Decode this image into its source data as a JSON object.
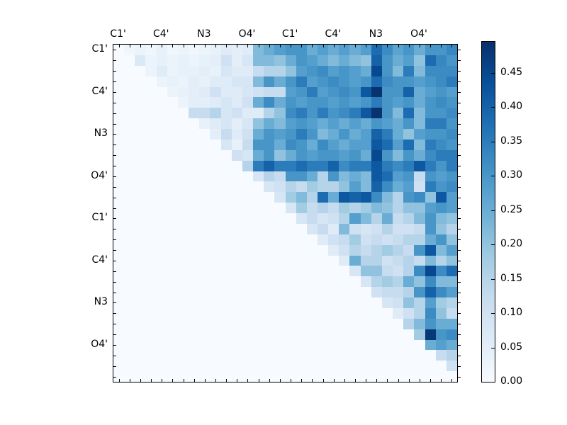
{
  "figure": {
    "background": "#ffffff"
  },
  "chart_data": {
    "type": "heatmap",
    "title": "",
    "xlabel": "",
    "ylabel": "",
    "n_rows": 32,
    "n_cols": 32,
    "x_tick_labels": [
      "C1'",
      "C4'",
      "N3",
      "O4'",
      "C1'",
      "C4'",
      "N3",
      "O4'"
    ],
    "y_tick_labels": [
      "C1'",
      "C4'",
      "N3",
      "O4'",
      "C1'",
      "C4'",
      "N3",
      "O4'"
    ],
    "x_tick_positions": [
      0,
      4,
      8,
      12,
      16,
      20,
      24,
      28
    ],
    "y_tick_positions": [
      0,
      4,
      8,
      12,
      16,
      20,
      24,
      28
    ],
    "minor_ticks_every_cell": true,
    "vmin": 0.0,
    "vmax": 0.495,
    "colormap": {
      "name": "Blues",
      "anchors": [
        "#f7fbff",
        "#deebf7",
        "#c6dbef",
        "#9ecae1",
        "#6baed6",
        "#4292c6",
        "#2171b5",
        "#08519c",
        "#08306b"
      ]
    },
    "colorbar": {
      "tick_labels": [
        "0.00",
        "0.05",
        "0.10",
        "0.15",
        "0.20",
        "0.25",
        "0.30",
        "0.35",
        "0.40",
        "0.45"
      ],
      "tick_values": [
        0.0,
        0.05,
        0.1,
        0.15,
        0.2,
        0.25,
        0.3,
        0.35,
        0.4,
        0.45
      ],
      "position": "right"
    },
    "matrix": [
      [
        0,
        0.02,
        0.03,
        0.02,
        0.04,
        0.02,
        0.03,
        0.02,
        0.03,
        0.04,
        0.06,
        0.05,
        0.06,
        0.22,
        0.25,
        0.28,
        0.3,
        0.3,
        0.25,
        0.28,
        0.25,
        0.28,
        0.25,
        0.28,
        0.38,
        0.32,
        0.27,
        0.3,
        0.25,
        0.3,
        0.3,
        0.33
      ],
      [
        0,
        0,
        0.07,
        0.03,
        0.04,
        0.03,
        0.04,
        0.03,
        0.04,
        0.05,
        0.1,
        0.05,
        0.08,
        0.22,
        0.22,
        0.2,
        0.25,
        0.3,
        0.28,
        0.25,
        0.22,
        0.25,
        0.22,
        0.2,
        0.4,
        0.3,
        0.25,
        0.28,
        0.2,
        0.38,
        0.33,
        0.3
      ],
      [
        0,
        0,
        0,
        0.03,
        0.06,
        0.03,
        0.04,
        0.04,
        0.05,
        0.04,
        0.08,
        0.06,
        0.06,
        0.12,
        0.15,
        0.15,
        0.2,
        0.28,
        0.3,
        0.32,
        0.28,
        0.3,
        0.28,
        0.25,
        0.45,
        0.3,
        0.22,
        0.35,
        0.22,
        0.32,
        0.32,
        0.32
      ],
      [
        0,
        0,
        0,
        0,
        0.03,
        0.04,
        0.03,
        0.05,
        0.04,
        0.06,
        0.06,
        0.08,
        0.08,
        0.22,
        0.3,
        0.25,
        0.3,
        0.35,
        0.28,
        0.3,
        0.32,
        0.3,
        0.28,
        0.3,
        0.38,
        0.32,
        0.3,
        0.3,
        0.28,
        0.3,
        0.32,
        0.35
      ],
      [
        0,
        0,
        0,
        0,
        0,
        0.03,
        0.04,
        0.05,
        0.06,
        0.1,
        0.06,
        0.06,
        0.08,
        0.1,
        0.12,
        0.12,
        0.28,
        0.3,
        0.35,
        0.28,
        0.3,
        0.32,
        0.3,
        0.42,
        0.49,
        0.3,
        0.3,
        0.4,
        0.25,
        0.28,
        0.3,
        0.28
      ],
      [
        0,
        0,
        0,
        0,
        0,
        0,
        0.03,
        0.05,
        0.05,
        0.06,
        0.08,
        0.06,
        0.1,
        0.25,
        0.32,
        0.25,
        0.3,
        0.28,
        0.3,
        0.3,
        0.28,
        0.3,
        0.28,
        0.3,
        0.35,
        0.3,
        0.28,
        0.3,
        0.25,
        0.3,
        0.32,
        0.3
      ],
      [
        0,
        0,
        0,
        0,
        0,
        0,
        0,
        0.12,
        0.12,
        0.15,
        0.08,
        0.1,
        0.06,
        0.06,
        0.15,
        0.2,
        0.32,
        0.35,
        0.3,
        0.35,
        0.3,
        0.32,
        0.35,
        0.42,
        0.49,
        0.3,
        0.22,
        0.38,
        0.22,
        0.3,
        0.3,
        0.32
      ],
      [
        0,
        0,
        0,
        0,
        0,
        0,
        0,
        0,
        0.04,
        0.06,
        0.08,
        0.05,
        0.08,
        0.2,
        0.25,
        0.22,
        0.28,
        0.3,
        0.28,
        0.25,
        0.28,
        0.25,
        0.28,
        0.25,
        0.3,
        0.28,
        0.25,
        0.3,
        0.22,
        0.35,
        0.35,
        0.3
      ],
      [
        0,
        0,
        0,
        0,
        0,
        0,
        0,
        0,
        0,
        0.05,
        0.12,
        0.06,
        0.1,
        0.25,
        0.3,
        0.28,
        0.3,
        0.35,
        0.3,
        0.22,
        0.25,
        0.3,
        0.25,
        0.28,
        0.4,
        0.35,
        0.25,
        0.2,
        0.28,
        0.3,
        0.3,
        0.32
      ],
      [
        0,
        0,
        0,
        0,
        0,
        0,
        0,
        0,
        0,
        0,
        0.08,
        0.04,
        0.12,
        0.3,
        0.3,
        0.25,
        0.32,
        0.3,
        0.25,
        0.32,
        0.28,
        0.25,
        0.28,
        0.28,
        0.42,
        0.38,
        0.28,
        0.38,
        0.22,
        0.35,
        0.32,
        0.3
      ],
      [
        0,
        0,
        0,
        0,
        0,
        0,
        0,
        0,
        0,
        0,
        0,
        0.1,
        0.08,
        0.25,
        0.3,
        0.2,
        0.25,
        0.3,
        0.28,
        0.3,
        0.3,
        0.28,
        0.3,
        0.25,
        0.45,
        0.3,
        0.22,
        0.3,
        0.25,
        0.32,
        0.35,
        0.35
      ],
      [
        0,
        0,
        0,
        0,
        0,
        0,
        0,
        0,
        0,
        0,
        0,
        0,
        0.15,
        0.35,
        0.4,
        0.35,
        0.35,
        0.38,
        0.35,
        0.35,
        0.4,
        0.32,
        0.35,
        0.35,
        0.42,
        0.35,
        0.32,
        0.35,
        0.42,
        0.35,
        0.3,
        0.35
      ],
      [
        0,
        0,
        0,
        0,
        0,
        0,
        0,
        0,
        0,
        0,
        0,
        0,
        0,
        0.08,
        0.15,
        0.12,
        0.3,
        0.3,
        0.25,
        0.15,
        0.3,
        0.22,
        0.25,
        0.22,
        0.42,
        0.38,
        0.28,
        0.3,
        0.12,
        0.3,
        0.28,
        0.3
      ],
      [
        0,
        0,
        0,
        0,
        0,
        0,
        0,
        0,
        0,
        0,
        0,
        0,
        0,
        0,
        0.08,
        0.1,
        0.15,
        0.12,
        0.18,
        0.15,
        0.15,
        0.2,
        0.28,
        0.22,
        0.4,
        0.32,
        0.25,
        0.28,
        0.1,
        0.35,
        0.3,
        0.32
      ],
      [
        0,
        0,
        0,
        0,
        0,
        0,
        0,
        0,
        0,
        0,
        0,
        0,
        0,
        0,
        0,
        0.08,
        0.18,
        0.22,
        0.15,
        0.38,
        0.25,
        0.42,
        0.4,
        0.42,
        0.32,
        0.22,
        0.15,
        0.3,
        0.32,
        0.2,
        0.42,
        0.28
      ],
      [
        0,
        0,
        0,
        0,
        0,
        0,
        0,
        0,
        0,
        0,
        0,
        0,
        0,
        0,
        0,
        0,
        0.08,
        0.18,
        0.12,
        0.15,
        0.12,
        0.18,
        0.15,
        0.18,
        0.22,
        0.2,
        0.15,
        0.2,
        0.2,
        0.28,
        0.3,
        0.28
      ],
      [
        0,
        0,
        0,
        0,
        0,
        0,
        0,
        0,
        0,
        0,
        0,
        0,
        0,
        0,
        0,
        0,
        0,
        0.08,
        0.12,
        0.08,
        0.1,
        0.15,
        0.28,
        0.22,
        0.15,
        0.25,
        0.12,
        0.15,
        0.22,
        0.3,
        0.22,
        0.2
      ],
      [
        0,
        0,
        0,
        0,
        0,
        0,
        0,
        0,
        0,
        0,
        0,
        0,
        0,
        0,
        0,
        0,
        0,
        0,
        0.08,
        0.12,
        0.06,
        0.22,
        0.1,
        0.08,
        0.1,
        0.15,
        0.1,
        0.1,
        0.12,
        0.3,
        0.2,
        0.15
      ],
      [
        0,
        0,
        0,
        0,
        0,
        0,
        0,
        0,
        0,
        0,
        0,
        0,
        0,
        0,
        0,
        0,
        0,
        0,
        0,
        0.06,
        0.1,
        0.12,
        0.18,
        0.1,
        0.12,
        0.1,
        0.12,
        0.15,
        0.15,
        0.25,
        0.3,
        0.2
      ],
      [
        0,
        0,
        0,
        0,
        0,
        0,
        0,
        0,
        0,
        0,
        0,
        0,
        0,
        0,
        0,
        0,
        0,
        0,
        0,
        0,
        0.06,
        0.1,
        0.15,
        0.12,
        0.15,
        0.18,
        0.15,
        0.12,
        0.3,
        0.42,
        0.22,
        0.28
      ],
      [
        0,
        0,
        0,
        0,
        0,
        0,
        0,
        0,
        0,
        0,
        0,
        0,
        0,
        0,
        0,
        0,
        0,
        0,
        0,
        0,
        0,
        0.06,
        0.25,
        0.15,
        0.15,
        0.1,
        0.12,
        0.15,
        0.12,
        0.22,
        0.15,
        0.2
      ],
      [
        0,
        0,
        0,
        0,
        0,
        0,
        0,
        0,
        0,
        0,
        0,
        0,
        0,
        0,
        0,
        0,
        0,
        0,
        0,
        0,
        0,
        0,
        0.08,
        0.2,
        0.2,
        0.12,
        0.1,
        0.15,
        0.32,
        0.45,
        0.32,
        0.38
      ],
      [
        0,
        0,
        0,
        0,
        0,
        0,
        0,
        0,
        0,
        0,
        0,
        0,
        0,
        0,
        0,
        0,
        0,
        0,
        0,
        0,
        0,
        0,
        0,
        0.08,
        0.15,
        0.18,
        0.15,
        0.25,
        0.2,
        0.32,
        0.22,
        0.22
      ],
      [
        0,
        0,
        0,
        0,
        0,
        0,
        0,
        0,
        0,
        0,
        0,
        0,
        0,
        0,
        0,
        0,
        0,
        0,
        0,
        0,
        0,
        0,
        0,
        0,
        0.1,
        0.12,
        0.12,
        0.15,
        0.3,
        0.4,
        0.32,
        0.28
      ],
      [
        0,
        0,
        0,
        0,
        0,
        0,
        0,
        0,
        0,
        0,
        0,
        0,
        0,
        0,
        0,
        0,
        0,
        0,
        0,
        0,
        0,
        0,
        0,
        0,
        0,
        0.08,
        0.1,
        0.2,
        0.15,
        0.28,
        0.18,
        0.15
      ],
      [
        0,
        0,
        0,
        0,
        0,
        0,
        0,
        0,
        0,
        0,
        0,
        0,
        0,
        0,
        0,
        0,
        0,
        0,
        0,
        0,
        0,
        0,
        0,
        0,
        0,
        0,
        0.06,
        0.1,
        0.15,
        0.32,
        0.2,
        0.12
      ],
      [
        0,
        0,
        0,
        0,
        0,
        0,
        0,
        0,
        0,
        0,
        0,
        0,
        0,
        0,
        0,
        0,
        0,
        0,
        0,
        0,
        0,
        0,
        0,
        0,
        0,
        0,
        0,
        0.15,
        0.22,
        0.3,
        0.25,
        0.25
      ],
      [
        0,
        0,
        0,
        0,
        0,
        0,
        0,
        0,
        0,
        0,
        0,
        0,
        0,
        0,
        0,
        0,
        0,
        0,
        0,
        0,
        0,
        0,
        0,
        0,
        0,
        0,
        0,
        0,
        0.18,
        0.48,
        0.3,
        0.32
      ],
      [
        0,
        0,
        0,
        0,
        0,
        0,
        0,
        0,
        0,
        0,
        0,
        0,
        0,
        0,
        0,
        0,
        0,
        0,
        0,
        0,
        0,
        0,
        0,
        0,
        0,
        0,
        0,
        0,
        0,
        0.25,
        0.28,
        0.25
      ],
      [
        0,
        0,
        0,
        0,
        0,
        0,
        0,
        0,
        0,
        0,
        0,
        0,
        0,
        0,
        0,
        0,
        0,
        0,
        0,
        0,
        0,
        0,
        0,
        0,
        0,
        0,
        0,
        0,
        0,
        0,
        0.12,
        0.15
      ],
      [
        0,
        0,
        0,
        0,
        0,
        0,
        0,
        0,
        0,
        0,
        0,
        0,
        0,
        0,
        0,
        0,
        0,
        0,
        0,
        0,
        0,
        0,
        0,
        0,
        0,
        0,
        0,
        0,
        0,
        0,
        0,
        0.1
      ],
      [
        0,
        0,
        0,
        0,
        0,
        0,
        0,
        0,
        0,
        0,
        0,
        0,
        0,
        0,
        0,
        0,
        0,
        0,
        0,
        0,
        0,
        0,
        0,
        0,
        0,
        0,
        0,
        0,
        0,
        0,
        0,
        0
      ]
    ]
  }
}
